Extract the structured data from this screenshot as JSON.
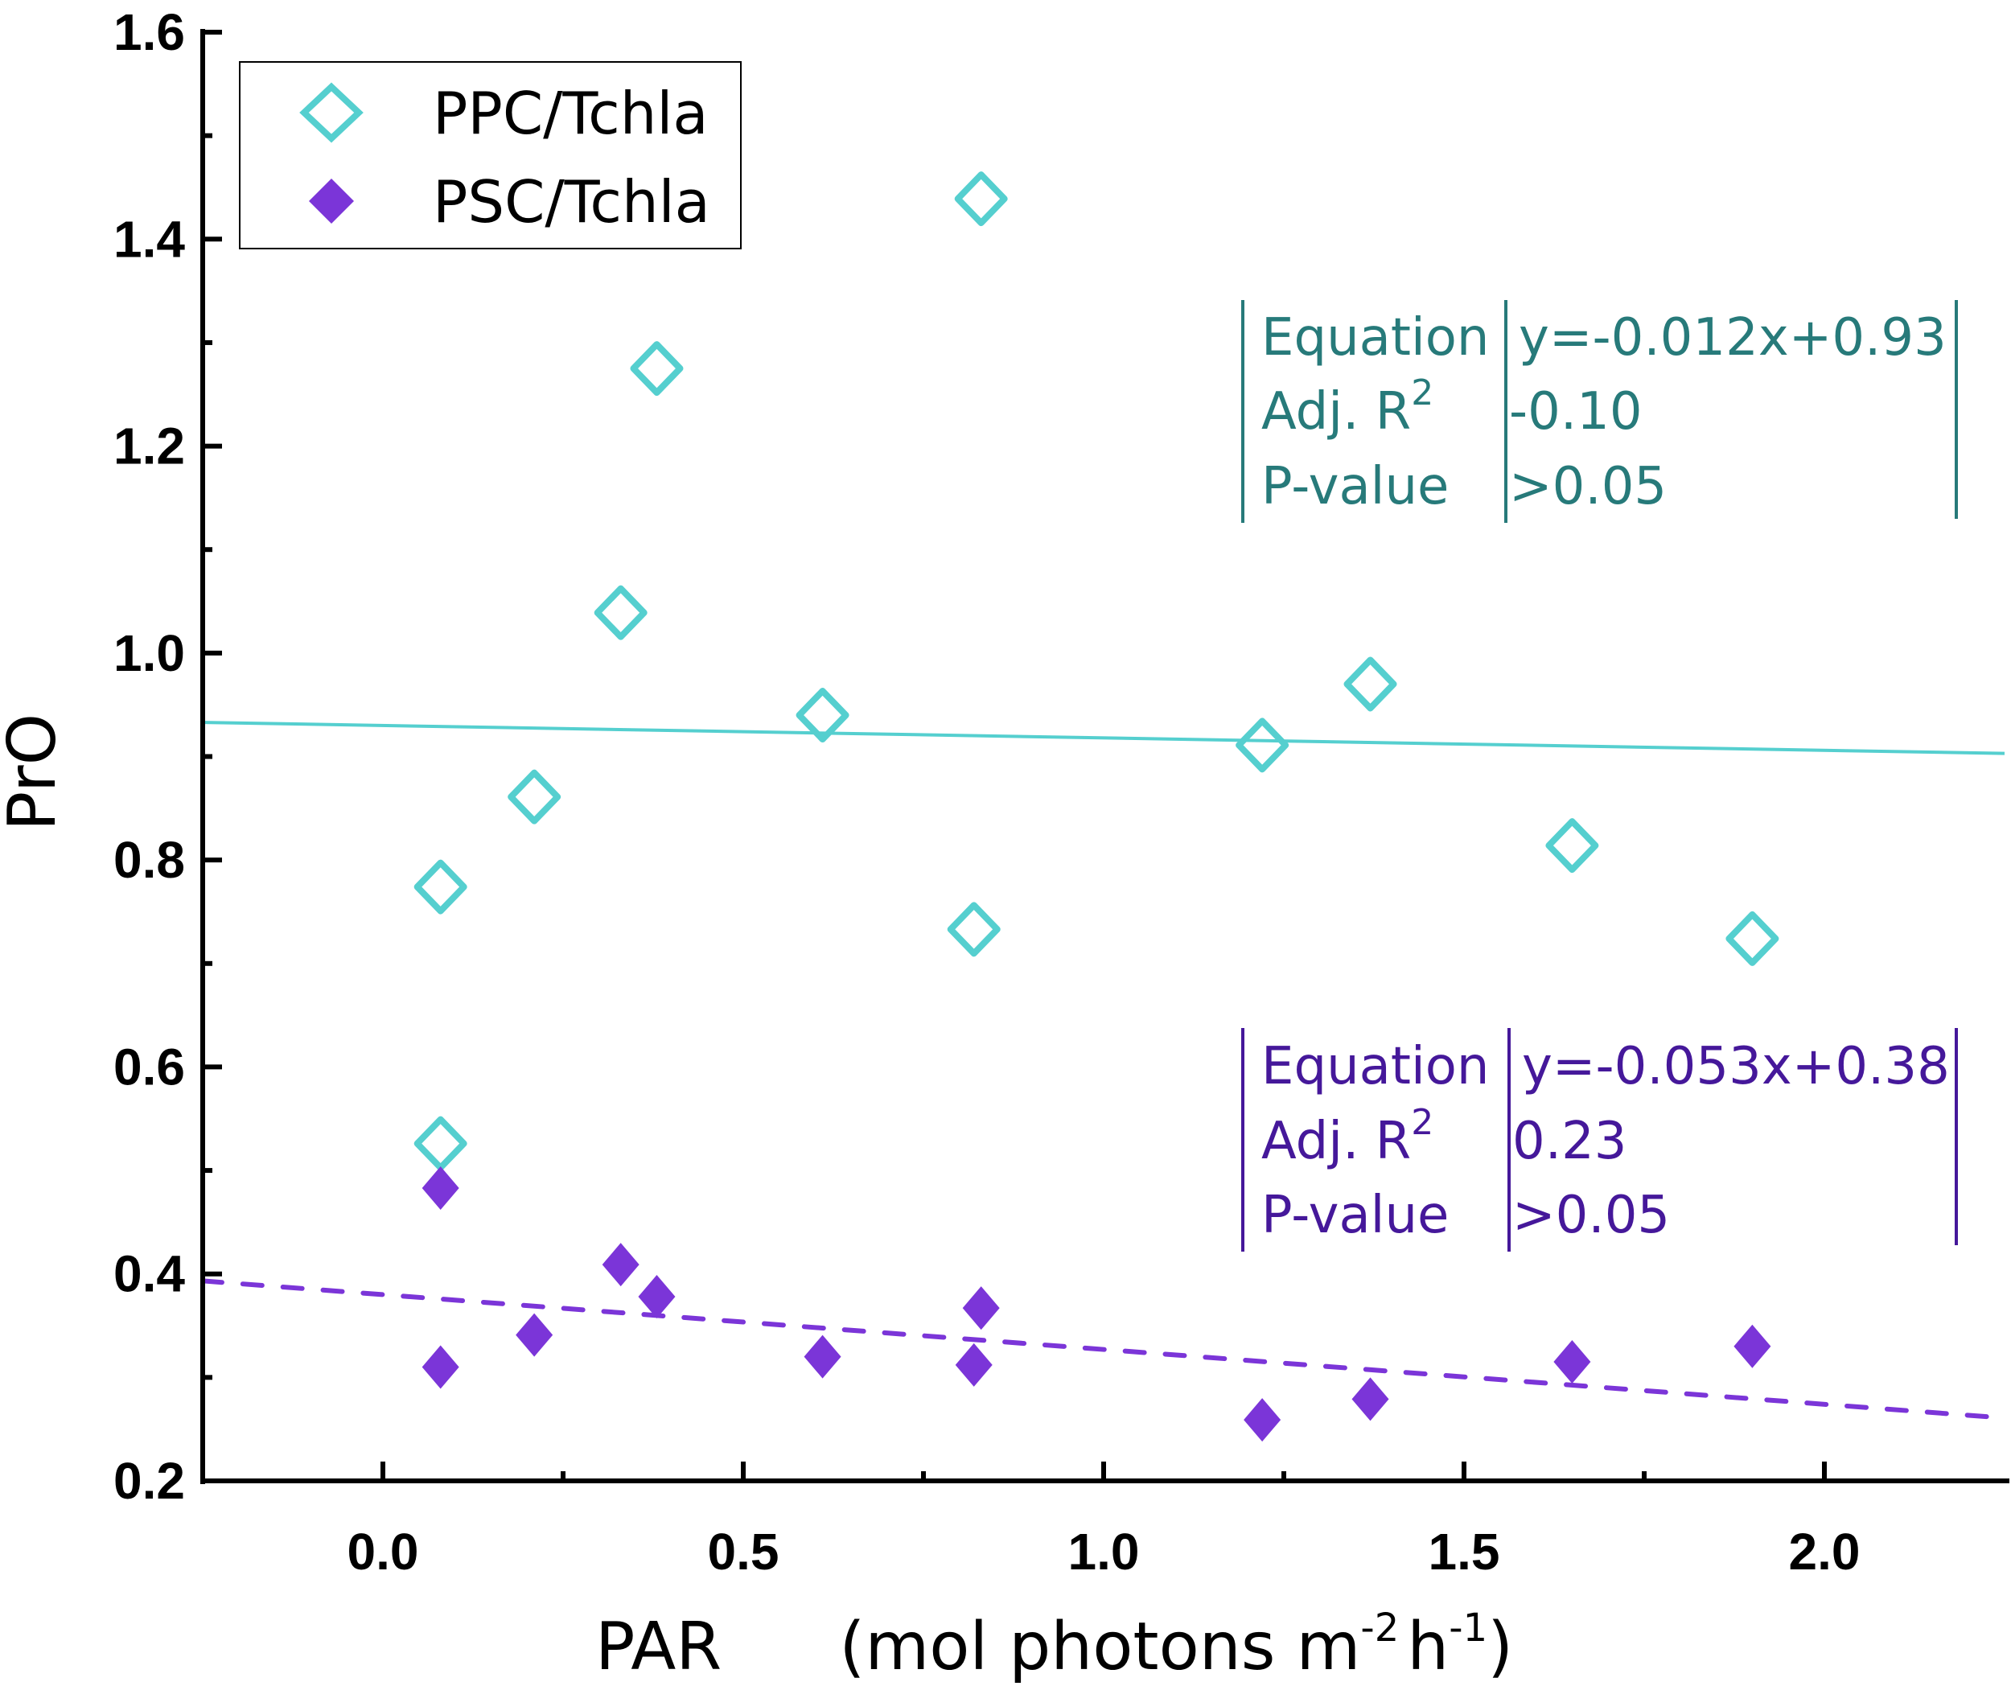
{
  "colors": {
    "ppc": "#55CFCF",
    "psc": "#7B35D8",
    "ppc_text": "#277A7A",
    "psc_text": "#45189A"
  },
  "chart_data": {
    "type": "scatter",
    "xlabel": "PAR",
    "xlabel_unit_prefix": "(mol photons m",
    "xlabel_unit_sup1": "-2",
    "xlabel_unit_mid": "h",
    "xlabel_unit_sup2": "-1",
    "xlabel_unit_suffix": ")",
    "ylabel": "PrO",
    "xlim": [
      -0.25,
      2.25
    ],
    "ylim": [
      0.2,
      1.6
    ],
    "xticks": [
      "0.0",
      "0.5",
      "1.0",
      "1.5",
      "2.0"
    ],
    "yticks": [
      "0.2",
      "0.4",
      "0.6",
      "0.8",
      "1.0",
      "1.2",
      "1.4",
      "1.6"
    ],
    "legend_position": "top-left",
    "series": [
      {
        "name": "PPC/Tchla",
        "marker": "open-diamond",
        "x": [
          0.08,
          0.08,
          0.21,
          0.33,
          0.38,
          0.61,
          0.83,
          0.82,
          1.22,
          1.37,
          1.65,
          1.9
        ],
        "y": [
          0.774,
          0.526,
          0.861,
          1.039,
          1.275,
          0.94,
          1.439,
          0.733,
          0.911,
          0.97,
          0.814,
          0.724
        ],
        "fit": {
          "slope": -0.012,
          "intercept": 0.93,
          "style": "solid"
        },
        "stats": {
          "equation_label": "Equation",
          "equation": "y=-0.012x+0.93",
          "r2_label": "Adj. R",
          "r2_sup": "2",
          "r2": "-0.10",
          "p_label": "P-value",
          "p": ">0.05"
        }
      },
      {
        "name": "PSC/Tchla",
        "marker": "filled-diamond",
        "x": [
          0.08,
          0.08,
          0.21,
          0.33,
          0.38,
          0.61,
          0.83,
          0.82,
          1.22,
          1.37,
          1.65,
          1.9
        ],
        "y": [
          0.483,
          0.31,
          0.341,
          0.409,
          0.378,
          0.32,
          0.367,
          0.312,
          0.259,
          0.279,
          0.315,
          0.33
        ],
        "fit": {
          "slope": -0.053,
          "intercept": 0.38,
          "style": "dashed"
        },
        "stats": {
          "equation_label": "Equation",
          "equation": "y=-0.053x+0.38",
          "r2_label": "Adj. R",
          "r2_sup": "2",
          "r2": "0.23",
          "p_label": "P-value",
          "p": ">0.05"
        }
      }
    ]
  }
}
